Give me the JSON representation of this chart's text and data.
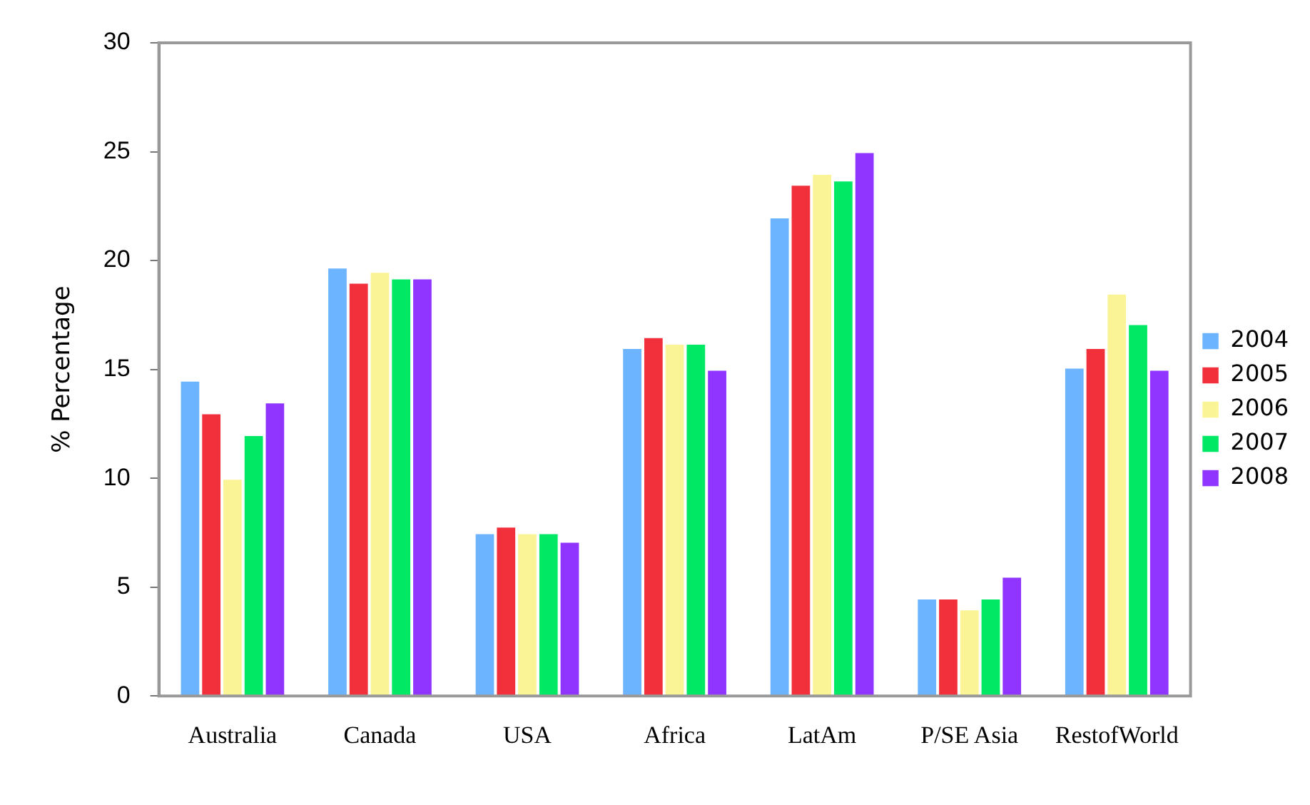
{
  "chart_data": {
    "type": "bar",
    "ylabel": "% Percentage",
    "categories": [
      "Australia",
      "Canada",
      "USA",
      "Africa",
      "LatAm",
      "P/SE Asia",
      "RestofWorld"
    ],
    "series": [
      {
        "name": "2004",
        "color": "#6cb4ff",
        "values": [
          14.5,
          19.7,
          7.5,
          16.0,
          22.0,
          4.5,
          15.1
        ]
      },
      {
        "name": "2005",
        "color": "#f2303c",
        "values": [
          13.0,
          19.0,
          7.8,
          16.5,
          23.5,
          4.5,
          16.0
        ]
      },
      {
        "name": "2006",
        "color": "#faf496",
        "values": [
          10.0,
          19.5,
          7.5,
          16.2,
          24.0,
          4.0,
          18.5
        ]
      },
      {
        "name": "2007",
        "color": "#00e864",
        "values": [
          12.0,
          19.2,
          7.5,
          16.2,
          23.7,
          4.5,
          17.1
        ]
      },
      {
        "name": "2008",
        "color": "#9035ff",
        "values": [
          13.5,
          19.2,
          7.1,
          15.0,
          25.0,
          5.5,
          15.0
        ]
      }
    ],
    "ylim": [
      0,
      30
    ],
    "yticks": [
      0,
      5,
      10,
      15,
      20,
      25,
      30
    ],
    "grid": false,
    "legend": "right"
  }
}
